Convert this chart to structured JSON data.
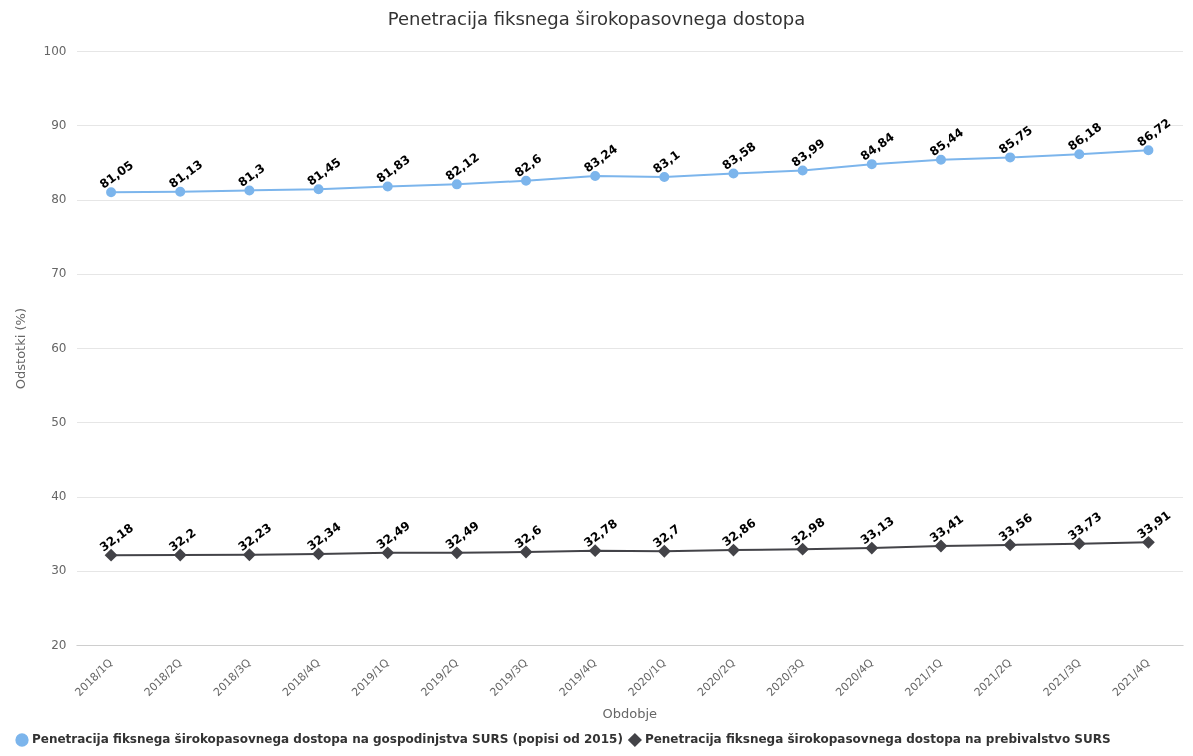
{
  "chart_data": {
    "type": "line",
    "title": "Penetracija fiksnega širokopasovnega dostopa",
    "xlabel": "Obdobje",
    "ylabel": "Odstotki (%)",
    "categories": [
      "2018/1Q",
      "2018/2Q",
      "2018/3Q",
      "2018/4Q",
      "2019/1Q",
      "2019/2Q",
      "2019/3Q",
      "2019/4Q",
      "2020/1Q",
      "2020/2Q",
      "2020/3Q",
      "2020/4Q",
      "2021/1Q",
      "2021/2Q",
      "2021/3Q",
      "2021/4Q"
    ],
    "series": [
      {
        "name": "Penetracija fiksnega širokopasovnega dostopa na gospodinjstva SURS (popisi od 2015)",
        "color": "#7cb5ec",
        "marker": "circle",
        "values": [
          81.05,
          81.13,
          81.3,
          81.45,
          81.83,
          82.12,
          82.6,
          83.24,
          83.1,
          83.58,
          83.99,
          84.84,
          85.44,
          85.75,
          86.18,
          86.72
        ],
        "value_labels": [
          "81,05",
          "81,13",
          "81,3",
          "81,45",
          "81,83",
          "82,12",
          "82,6",
          "83,24",
          "83,1",
          "83,58",
          "83,99",
          "84,84",
          "85,44",
          "85,75",
          "86,18",
          "86,72"
        ]
      },
      {
        "name": "Penetracija fiksnega širokopasovnega dostopa na prebivalstvo SURS",
        "color": "#434348",
        "marker": "diamond",
        "values": [
          32.18,
          32.2,
          32.23,
          32.34,
          32.49,
          32.49,
          32.6,
          32.78,
          32.7,
          32.86,
          32.98,
          33.13,
          33.41,
          33.56,
          33.73,
          33.91
        ],
        "value_labels": [
          "32,18",
          "32,2",
          "32,23",
          "32,34",
          "32,49",
          "32,49",
          "32,6",
          "32,78",
          "32,7",
          "32,86",
          "32,98",
          "33,13",
          "33,41",
          "33,56",
          "33,73",
          "33,91"
        ]
      }
    ],
    "ylim": [
      20,
      100
    ],
    "yticks": [
      20,
      30,
      40,
      50,
      60,
      70,
      80,
      90,
      100
    ],
    "grid": "y",
    "legend": "bottom left",
    "line_style": "solid"
  }
}
